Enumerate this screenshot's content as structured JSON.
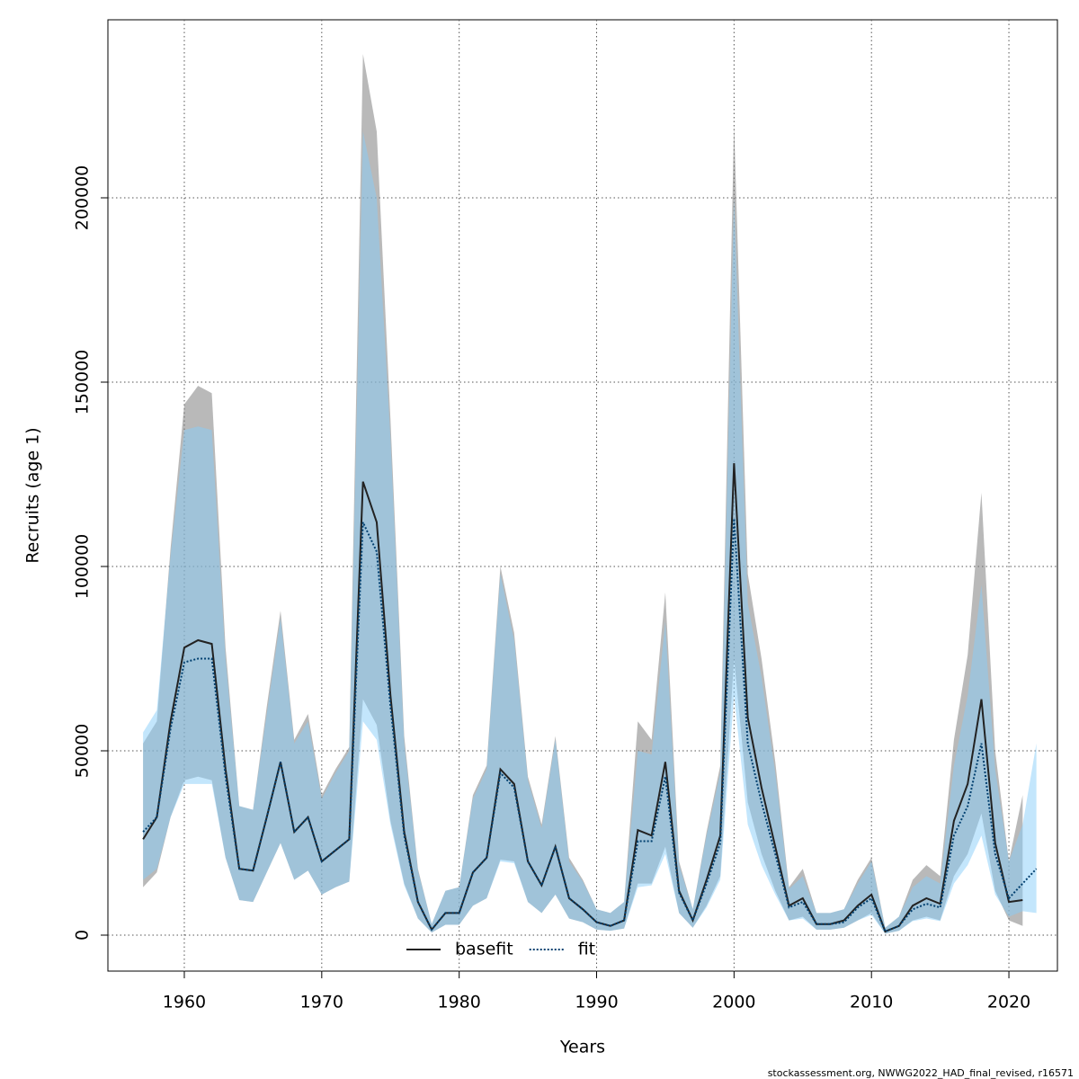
{
  "chart_data": {
    "type": "line",
    "x_label": "Years",
    "y_label": "Recruits (age 1)",
    "footnote": "stockassessment.org, NWWG2022_HAD_final_revised, r16571",
    "xlim": [
      1954.44,
      2023.53
    ],
    "ylim": [
      -9756,
      248293
    ],
    "xticks": [
      1960,
      1970,
      1980,
      1990,
      2000,
      2010,
      2020
    ],
    "yticks": [
      0,
      50000,
      100000,
      150000,
      200000
    ],
    "grid": true,
    "series": [
      {
        "name": "basefit",
        "color": "#222222",
        "band_color": "rgba(128,128,128,0.55)",
        "dash": "solid",
        "x": [
          1957,
          1958,
          1959,
          1960,
          1961,
          1962,
          1963,
          1964,
          1965,
          1966,
          1967,
          1968,
          1969,
          1970,
          1971,
          1972,
          1973,
          1974,
          1975,
          1976,
          1977,
          1978,
          1979,
          1980,
          1981,
          1982,
          1983,
          1984,
          1985,
          1986,
          1987,
          1988,
          1989,
          1990,
          1991,
          1992,
          1993,
          1994,
          1995,
          1996,
          1997,
          1998,
          1999,
          2000,
          2001,
          2002,
          2003,
          2004,
          2005,
          2006,
          2007,
          2008,
          2009,
          2010,
          2011,
          2012,
          2013,
          2014,
          2015,
          2016,
          2017,
          2018,
          2019,
          2020,
          2021
        ],
        "values": [
          26000,
          32000,
          58000,
          78000,
          80000,
          79000,
          45000,
          18000,
          17500,
          32000,
          47000,
          28000,
          32000,
          20000,
          23000,
          26000,
          123000,
          112000,
          65000,
          28000,
          9000,
          1500,
          6000,
          6000,
          17000,
          21000,
          45000,
          41000,
          20000,
          13500,
          24000,
          10000,
          7000,
          3500,
          2500,
          4000,
          28500,
          27000,
          47000,
          12000,
          4000,
          15000,
          27000,
          128000,
          59000,
          40000,
          24000,
          8000,
          10000,
          3000,
          3000,
          4000,
          8000,
          11000,
          1000,
          2500,
          8000,
          10000,
          8500,
          31000,
          41000,
          64000,
          25000,
          9000,
          9500
        ],
        "high": [
          52000,
          58000,
          105000,
          144000,
          149000,
          147000,
          78000,
          35000,
          34000,
          62000,
          88000,
          53000,
          60000,
          38000,
          45000,
          51000,
          239000,
          218000,
          140000,
          54000,
          18000,
          3000,
          12000,
          13000,
          38000,
          46000,
          100000,
          82000,
          43000,
          30000,
          54000,
          21000,
          15000,
          7000,
          6000,
          9000,
          58000,
          53000,
          93000,
          20000,
          7000,
          28000,
          46000,
          220000,
          98000,
          75000,
          47000,
          13000,
          18000,
          6000,
          6000,
          7000,
          15000,
          21000,
          2000,
          5000,
          15000,
          19000,
          16000,
          53000,
          76000,
          120000,
          50000,
          20000,
          38000
        ],
        "low": [
          13000,
          17000,
          32000,
          42000,
          43000,
          42000,
          21000,
          9500,
          9000,
          17000,
          25000,
          15000,
          17500,
          11000,
          13000,
          14500,
          64000,
          57000,
          31000,
          14000,
          4500,
          700,
          2800,
          2800,
          8000,
          10000,
          20500,
          20000,
          9000,
          6000,
          11000,
          4500,
          3500,
          1500,
          1200,
          1800,
          14000,
          14000,
          24000,
          6000,
          2000,
          8000,
          16000,
          75000,
          36000,
          22000,
          12000,
          4000,
          5000,
          1500,
          1500,
          2000,
          4000,
          6000,
          400,
          1200,
          4000,
          5000,
          4000,
          16000,
          22000,
          33000,
          12000,
          4000,
          2500
        ]
      },
      {
        "name": "fit",
        "color": "#003f6f",
        "band_color": "rgba(135,206,250,0.5)",
        "dash": "dotted",
        "x": [
          1957,
          1958,
          1959,
          1960,
          1961,
          1962,
          1963,
          1964,
          1965,
          1966,
          1967,
          1968,
          1969,
          1970,
          1971,
          1972,
          1973,
          1974,
          1975,
          1976,
          1977,
          1978,
          1979,
          1980,
          1981,
          1982,
          1983,
          1984,
          1985,
          1986,
          1987,
          1988,
          1989,
          1990,
          1991,
          1992,
          1993,
          1994,
          1995,
          1996,
          1997,
          1998,
          1999,
          2000,
          2001,
          2002,
          2003,
          2004,
          2005,
          2006,
          2007,
          2008,
          2009,
          2010,
          2011,
          2012,
          2013,
          2014,
          2015,
          2016,
          2017,
          2018,
          2019,
          2020,
          2021,
          2022
        ],
        "values": [
          28000,
          32000,
          56000,
          74000,
          75000,
          75000,
          43000,
          18000,
          17500,
          32000,
          47000,
          28000,
          32000,
          20000,
          23000,
          26000,
          112000,
          104000,
          62000,
          27000,
          9000,
          1500,
          6000,
          6000,
          17000,
          21000,
          44000,
          40000,
          20000,
          13500,
          24000,
          10000,
          7000,
          3500,
          2500,
          4000,
          25500,
          25500,
          43000,
          11500,
          4000,
          14000,
          25000,
          113000,
          52000,
          36000,
          22000,
          7500,
          9000,
          3000,
          3000,
          3500,
          7500,
          10000,
          1000,
          2500,
          7000,
          8500,
          7500,
          27000,
          35000,
          52000,
          22000,
          10000,
          14000,
          18000
        ],
        "high": [
          55000,
          61000,
          103000,
          137000,
          138000,
          137000,
          75000,
          35000,
          34000,
          60000,
          86000,
          52000,
          58000,
          37000,
          44000,
          50000,
          218000,
          200000,
          135000,
          52000,
          17500,
          3000,
          12000,
          13000,
          37000,
          45000,
          98000,
          80000,
          42000,
          29000,
          53000,
          20000,
          14500,
          7000,
          6000,
          9000,
          50000,
          49000,
          85000,
          19000,
          7000,
          27000,
          44000,
          200000,
          90000,
          70000,
          44000,
          12500,
          16000,
          6000,
          6000,
          7000,
          14000,
          20000,
          2000,
          5000,
          13000,
          16000,
          14000,
          46000,
          65000,
          95000,
          45000,
          20000,
          30000,
          52000
        ],
        "low": [
          15000,
          18000,
          32000,
          41000,
          41000,
          41000,
          21000,
          9500,
          9000,
          17000,
          25000,
          15000,
          17500,
          11000,
          13000,
          14500,
          58000,
          53000,
          30000,
          13500,
          4500,
          700,
          2800,
          2800,
          8000,
          10000,
          20000,
          19500,
          9000,
          6000,
          11000,
          4500,
          3500,
          1500,
          1200,
          1800,
          13000,
          13500,
          22000,
          6000,
          2000,
          7500,
          15000,
          65000,
          30000,
          19000,
          11000,
          4000,
          4500,
          1500,
          1500,
          2000,
          4000,
          5500,
          400,
          1200,
          3800,
          4500,
          3800,
          14000,
          19000,
          27000,
          11000,
          5000,
          6500,
          6000
        ]
      }
    ]
  }
}
